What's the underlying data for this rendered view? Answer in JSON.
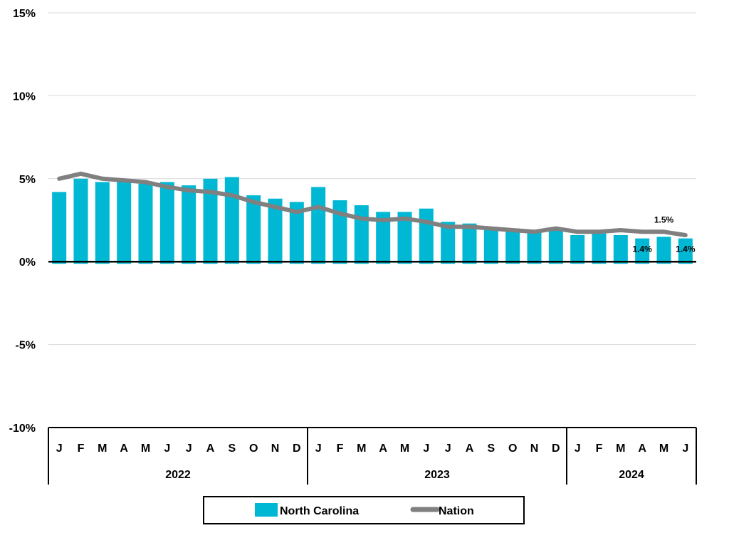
{
  "chart_data": {
    "type": "bar",
    "categories": [
      "J",
      "F",
      "M",
      "A",
      "M",
      "J",
      "J",
      "A",
      "S",
      "O",
      "N",
      "D",
      "J",
      "F",
      "M",
      "A",
      "M",
      "J",
      "J",
      "A",
      "S",
      "O",
      "N",
      "D",
      "J",
      "F",
      "M",
      "A",
      "M",
      "J"
    ],
    "year_groups": [
      {
        "label": "2022",
        "start": 0,
        "end": 11
      },
      {
        "label": "2023",
        "start": 12,
        "end": 23
      },
      {
        "label": "2024",
        "start": 24,
        "end": 29
      }
    ],
    "series": [
      {
        "name": "North Carolina",
        "type": "bar",
        "color": "#00B8D4",
        "values": [
          4.2,
          5.0,
          4.8,
          4.9,
          4.7,
          4.8,
          4.6,
          5.0,
          5.1,
          4.0,
          3.8,
          3.6,
          4.5,
          3.7,
          3.4,
          3.0,
          3.0,
          3.2,
          2.4,
          2.3,
          2.1,
          2.0,
          1.9,
          2.0,
          1.6,
          1.7,
          1.6,
          1.4,
          1.5,
          1.4
        ]
      },
      {
        "name": "Nation",
        "type": "line",
        "color": "#808080",
        "values": [
          5.0,
          5.3,
          5.0,
          4.9,
          4.8,
          4.5,
          4.3,
          4.2,
          4.0,
          3.6,
          3.3,
          3.0,
          3.3,
          2.9,
          2.6,
          2.5,
          2.6,
          2.4,
          2.1,
          2.1,
          2.0,
          1.9,
          1.8,
          2.0,
          1.8,
          1.8,
          1.9,
          1.8,
          1.8,
          1.6
        ]
      }
    ],
    "data_labels": [
      {
        "index": 27,
        "text": "1.4%"
      },
      {
        "index": 28,
        "text": "1.5%"
      },
      {
        "index": 29,
        "text": "1.4%"
      }
    ],
    "y_ticks": [
      {
        "value": 15,
        "label": "15%"
      },
      {
        "value": 10,
        "label": "10%"
      },
      {
        "value": 5,
        "label": "5%"
      },
      {
        "value": 0,
        "label": "0%"
      },
      {
        "value": -5,
        "label": "-5%"
      },
      {
        "value": -10,
        "label": "-10%"
      }
    ],
    "ylim": [
      -10,
      15
    ],
    "grid": true,
    "legend_position": "bottom"
  }
}
